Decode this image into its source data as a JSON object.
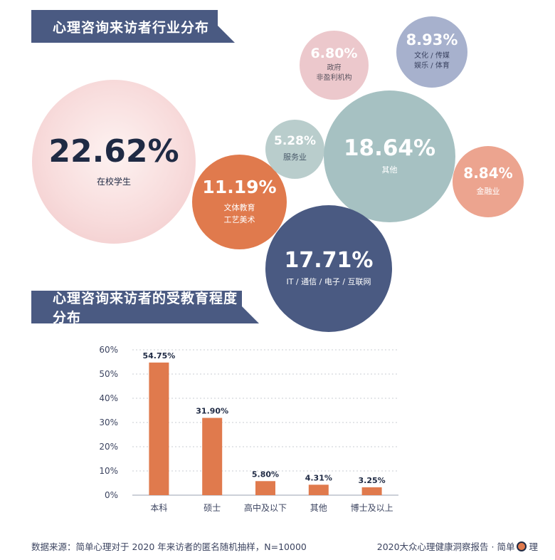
{
  "banners": {
    "industry": "心理咨询来访者行业分布",
    "education": "心理咨询来访者的受教育程度分布"
  },
  "industry_bubbles": {
    "student": {
      "pct": "22.62%",
      "label": "在校学生"
    },
    "arts": {
      "pct": "11.19%",
      "label_lines": [
        "文体教育",
        "工艺美术"
      ]
    },
    "service": {
      "pct": "5.28%",
      "label": "服务业"
    },
    "gov": {
      "pct": "6.80%",
      "label_lines": [
        "政府",
        "非盈利机构"
      ]
    },
    "culture": {
      "pct": "8.93%",
      "label_lines": [
        "文化 / 传媒",
        "娱乐 / 体育"
      ]
    },
    "other": {
      "pct": "18.64%",
      "label": "其他"
    },
    "finance": {
      "pct": "8.84%",
      "label": "金融业"
    },
    "it": {
      "pct": "17.71%",
      "label": "IT / 通信 / 电子 / 互联网"
    }
  },
  "chart_data": [
    {
      "type": "bubble",
      "categories": [
        "在校学生",
        "IT / 通信 / 电子 / 互联网",
        "其他",
        "文体教育 工艺美术",
        "文化 / 传媒 娱乐 / 体育",
        "金融业",
        "政府 非盈利机构",
        "服务业"
      ],
      "values": [
        22.62,
        17.71,
        18.64,
        11.19,
        8.93,
        8.84,
        6.8,
        5.28
      ],
      "title": "心理咨询来访者行业分布"
    },
    {
      "type": "bar",
      "title": "心理咨询来访者的受教育程度分布",
      "categories": [
        "本科",
        "硕士",
        "高中及以下",
        "其他",
        "博士及以上"
      ],
      "values": [
        54.75,
        31.9,
        5.8,
        4.31,
        3.25
      ],
      "data_labels": [
        "54.75%",
        "31.90%",
        "5.80%",
        "4.31%",
        "3.25%"
      ],
      "yticks": [
        "0%",
        "10%",
        "20%",
        "30%",
        "40%",
        "50%",
        "60%"
      ],
      "ylim": [
        0,
        60
      ],
      "grid": true,
      "bar_color": "#e07a4d"
    }
  ],
  "footer": {
    "source": "数据来源：简单心理对于 2020 年来访者的匿名随机抽样，N=10000",
    "report": "2020大众心理健康洞察报告 · 简单",
    "brand_tail": "理"
  },
  "colors": {
    "navy": "#4a5a82",
    "orange": "#e07a4d",
    "teal": "#a6c1c2",
    "pink": "#ecc8cc",
    "lavender": "#a7b1cd",
    "salmon": "#eca48f"
  }
}
